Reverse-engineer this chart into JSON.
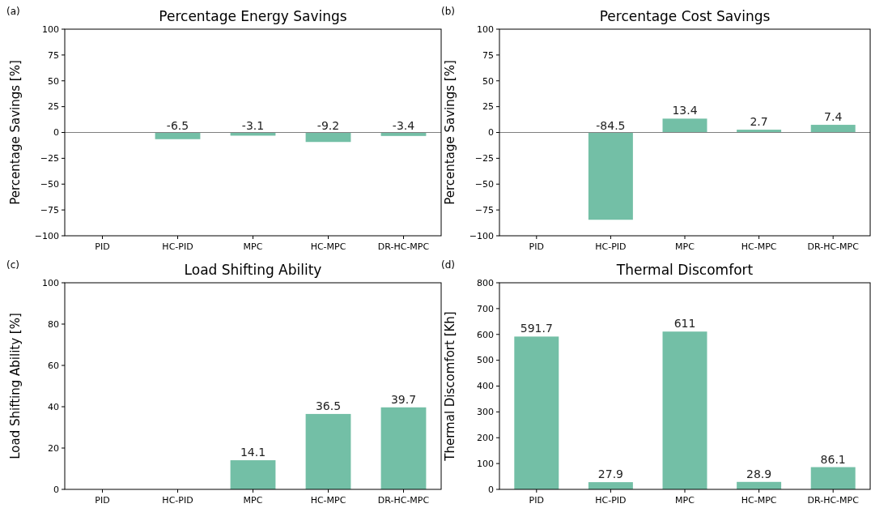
{
  "chart_data": [
    {
      "type": "bar",
      "title": "Percentage Energy Savings",
      "ylabel": "Percentage Savings [%]",
      "annotations": [
        "(a)"
      ],
      "categories": [
        "PID",
        "HC-PID",
        "MPC",
        "HC-MPC",
        "DR-HC-MPC"
      ],
      "values": [
        null,
        -6.5,
        -3.1,
        -9.2,
        -3.4
      ],
      "data_labels": true,
      "color": "#73bfa6",
      "ylim": [
        -100,
        100
      ],
      "yticks": [
        -100,
        -75,
        -50,
        -25,
        0,
        25,
        50,
        75,
        100
      ],
      "ref_lines": [
        {
          "axis": "y",
          "value": 0,
          "color": "#808080"
        }
      ],
      "grid": false
    },
    {
      "type": "bar",
      "title": "Percentage Cost Savings",
      "ylabel": "Percentage Savings [%]",
      "annotations": [
        "(b)"
      ],
      "categories": [
        "PID",
        "HC-PID",
        "MPC",
        "HC-MPC",
        "DR-HC-MPC"
      ],
      "values": [
        null,
        -84.5,
        13.4,
        2.7,
        7.4
      ],
      "data_labels": true,
      "color": "#73bfa6",
      "ylim": [
        -100,
        100
      ],
      "yticks": [
        -100,
        -75,
        -50,
        -25,
        0,
        25,
        50,
        75,
        100
      ],
      "ref_lines": [
        {
          "axis": "y",
          "value": 0,
          "color": "#808080"
        }
      ],
      "grid": false
    },
    {
      "type": "bar",
      "title": "Load Shifting Ability",
      "ylabel": "Load Shifting Ability [%]",
      "annotations": [
        "(c)"
      ],
      "categories": [
        "PID",
        "HC-PID",
        "MPC",
        "HC-MPC",
        "DR-HC-MPC"
      ],
      "values": [
        null,
        null,
        14.1,
        36.5,
        39.7
      ],
      "data_labels": true,
      "color": "#73bfa6",
      "ylim": [
        0,
        100
      ],
      "yticks": [
        0,
        20,
        40,
        60,
        80,
        100
      ],
      "grid": false
    },
    {
      "type": "bar",
      "title": "Thermal Discomfort",
      "ylabel": "Thermal Discomfort [Kh]",
      "annotations": [
        "(d)"
      ],
      "categories": [
        "PID",
        "HC-PID",
        "MPC",
        "HC-MPC",
        "DR-HC-MPC"
      ],
      "values": [
        591.7,
        27.9,
        611,
        28.9,
        86.1
      ],
      "data_labels": true,
      "color": "#73bfa6",
      "ylim": [
        0,
        800
      ],
      "yticks": [
        0,
        100,
        200,
        300,
        400,
        500,
        600,
        700,
        800
      ],
      "grid": false
    }
  ]
}
